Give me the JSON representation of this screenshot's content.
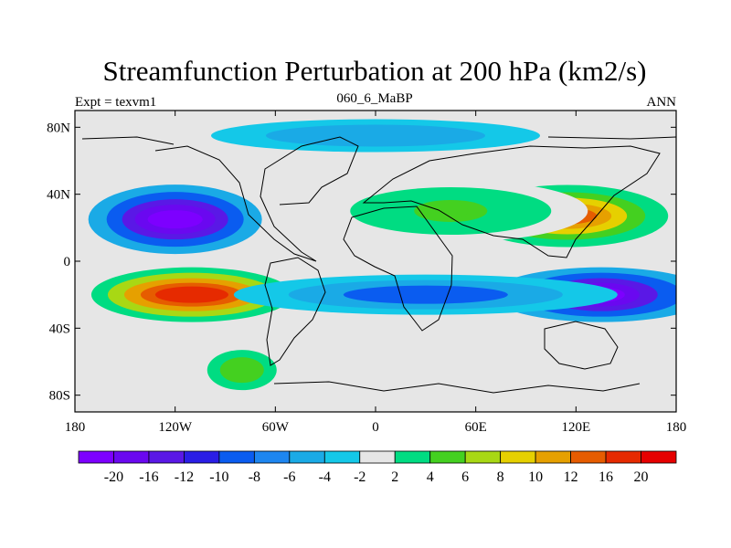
{
  "chart_data": {
    "type": "heatmap",
    "title": "Streamfunction Perturbation at 200 hPa (km2/s)",
    "left_label": "Expt = texvm1",
    "center_label": "060_6_MaBP",
    "right_label": "ANN",
    "xlim": [
      -180,
      180
    ],
    "ylim": [
      -90,
      90
    ],
    "x_ticks": [
      {
        "value": -180,
        "label": "180"
      },
      {
        "value": -120,
        "label": "120W"
      },
      {
        "value": -60,
        "label": "60W"
      },
      {
        "value": 0,
        "label": "0"
      },
      {
        "value": 60,
        "label": "60E"
      },
      {
        "value": 120,
        "label": "120E"
      },
      {
        "value": 180,
        "label": "180"
      }
    ],
    "y_ticks": [
      {
        "value": 80,
        "label": "80N"
      },
      {
        "value": 40,
        "label": "40N"
      },
      {
        "value": 0,
        "label": "0"
      },
      {
        "value": -40,
        "label": "40S"
      },
      {
        "value": -80,
        "label": "80S"
      }
    ],
    "colorbar": {
      "labels": [
        "-20",
        "-16",
        "-12",
        "-10",
        "-8",
        "-6",
        "-4",
        "-2",
        "2",
        "4",
        "6",
        "8",
        "10",
        "12",
        "16",
        "20"
      ],
      "colors": [
        "#7d00ff",
        "#6a08f0",
        "#5a18e6",
        "#2a1ee6",
        "#0a5cf0",
        "#1e86f0",
        "#1aaae6",
        "#14c8e8",
        "#e6e6e6",
        "#00dc82",
        "#44d020",
        "#a8d814",
        "#e6d000",
        "#e6a000",
        "#e65c00",
        "#e62a00",
        "#e60000"
      ],
      "zero_color": "#e6e6e6"
    },
    "features": [
      {
        "name": "North Pacific negative center",
        "lon": -120,
        "lat": 25,
        "peak": -22
      },
      {
        "name": "South Pacific positive center",
        "lon": -110,
        "lat": -20,
        "peak": 18
      },
      {
        "name": "Asian positive center",
        "lon": 115,
        "lat": 27,
        "peak": 14
      },
      {
        "name": "South Indian-Australian negative center",
        "lon": 135,
        "lat": -20,
        "peak": -22
      },
      {
        "name": "North Africa-Middle East positive band",
        "lon": 45,
        "lat": 30,
        "peak": 6
      },
      {
        "name": "Southern subtropical negative band",
        "lon": 30,
        "lat": -20,
        "peak": -8
      },
      {
        "name": "Southern high-latitude positive region",
        "lon": -80,
        "lat": -65,
        "peak": 5
      },
      {
        "name": "Northern high-latitude negative region",
        "lon": 0,
        "lat": 75,
        "peak": -4
      }
    ]
  }
}
